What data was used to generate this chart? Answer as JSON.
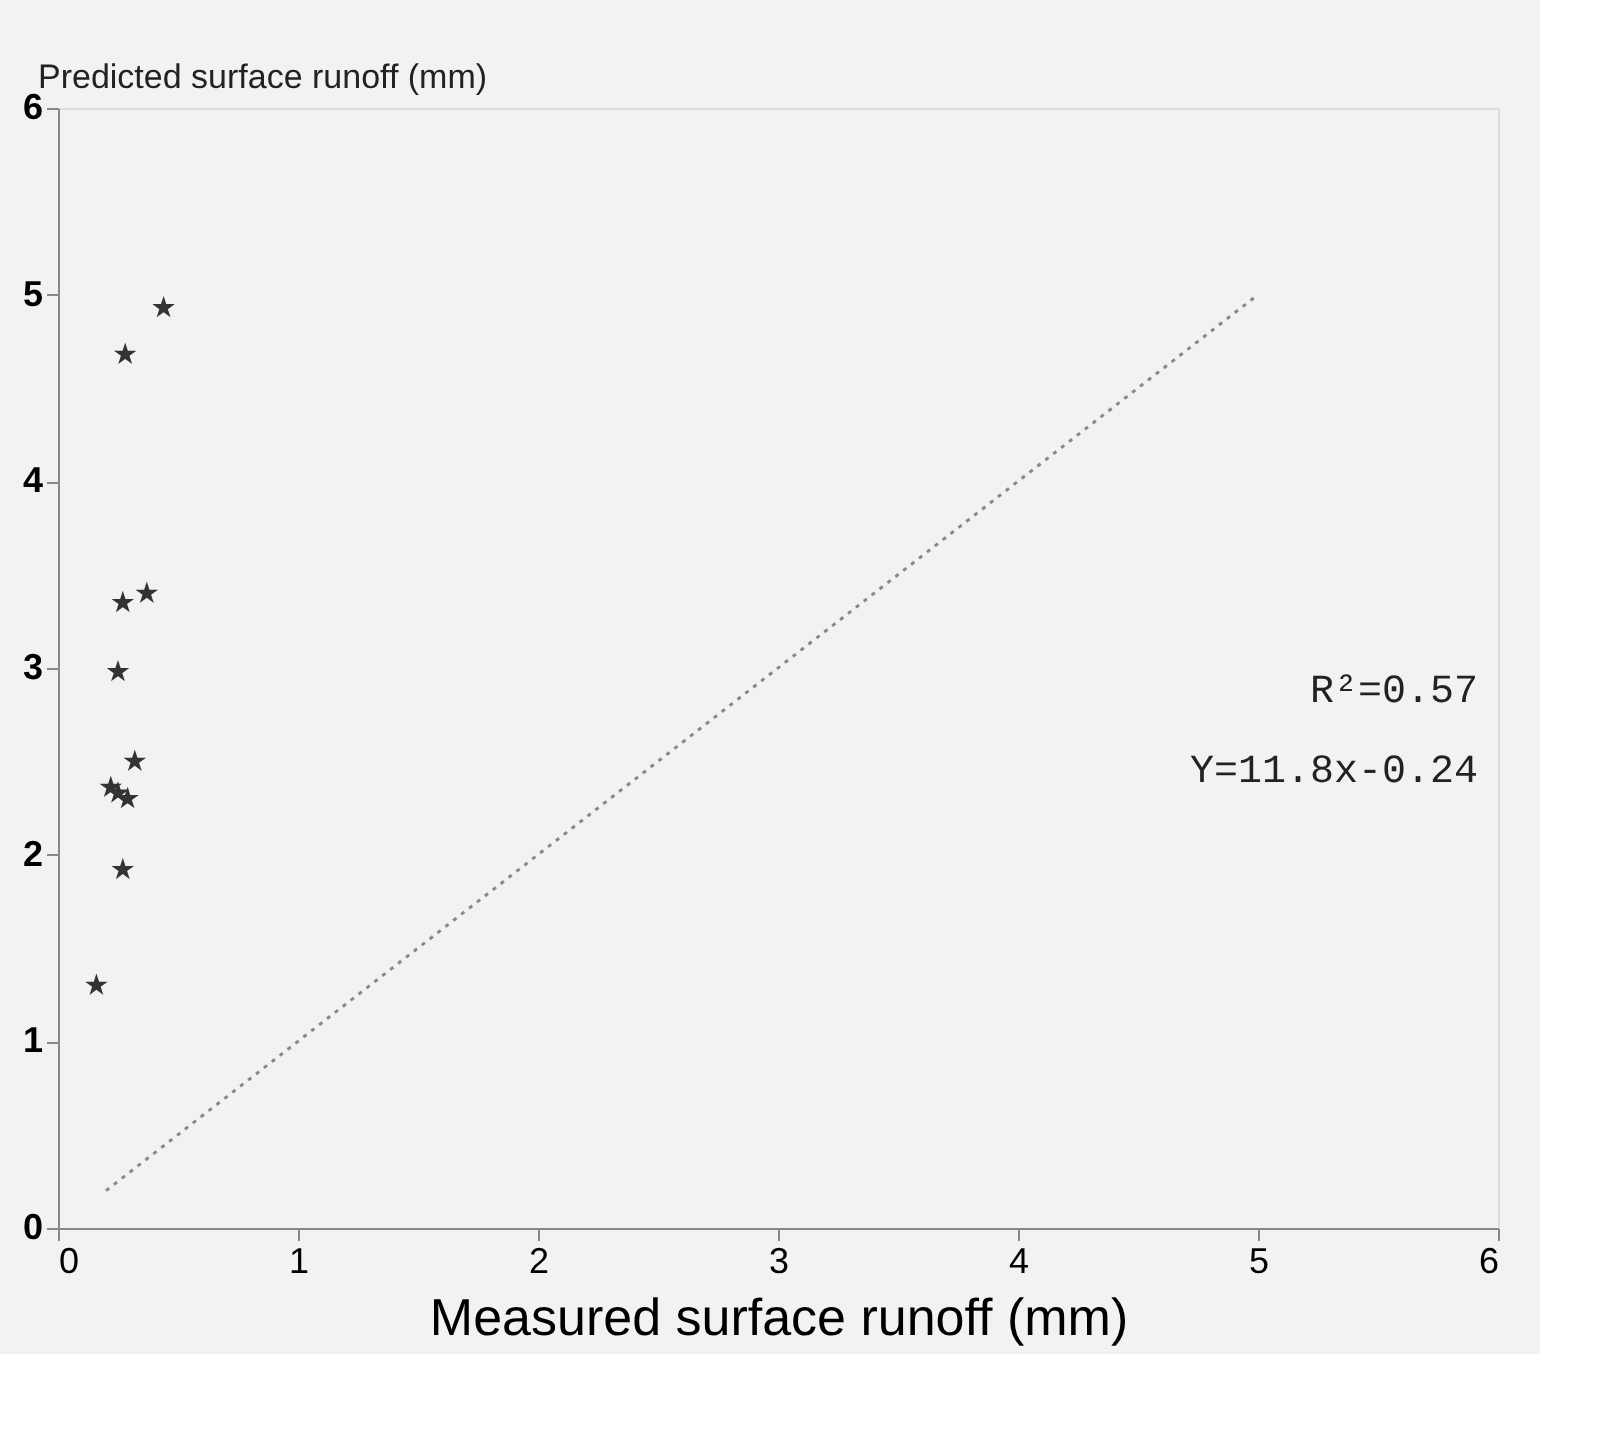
{
  "chart_data": {
    "type": "scatter",
    "xlabel": "Measured surface runoff (mm)",
    "ylabel": "Predicted surface runoff (mm)",
    "xlim": [
      0,
      6
    ],
    "ylim": [
      0,
      6
    ],
    "xticks": [
      0,
      1,
      2,
      3,
      4,
      5,
      6
    ],
    "yticks": [
      0,
      1,
      2,
      3,
      4,
      5,
      6
    ],
    "grid": false,
    "series": [
      {
        "marker": "star",
        "color": "#333333",
        "x": [
          0.44,
          0.28,
          0.27,
          0.37,
          0.25,
          0.32,
          0.25,
          0.22,
          0.29,
          0.27,
          0.16
        ],
        "values": [
          4.93,
          4.68,
          3.35,
          3.4,
          2.98,
          2.5,
          2.33,
          2.36,
          2.3,
          1.92,
          1.3
        ]
      },
      {
        "type": "line",
        "color": "#888888",
        "line_style": "dotted",
        "x": [
          0.2,
          5
        ],
        "values": [
          0.2,
          5
        ]
      }
    ],
    "annotations": [
      "R²=0.57",
      "Y=11.8x-0.24"
    ]
  }
}
